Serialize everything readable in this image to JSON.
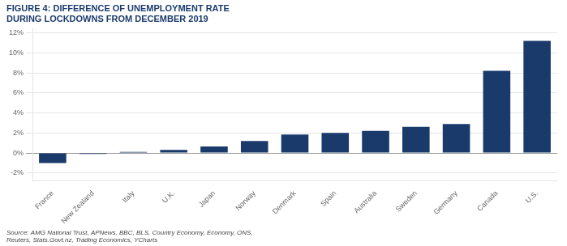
{
  "chart_data": {
    "type": "bar",
    "title": "FIGURE 4: DIFFERENCE OF UNEMPLOYMENT RATE\nDURING LOCKDOWNS FROM DECEMBER 2019",
    "annotations": [
      "Source: AMG National Trust, APNews, BBC, BLS, Country Economy, Economy, ONS,\nReuters, Stats.Govt.nz, Trading Economics, YCharts"
    ],
    "categories": [
      "France",
      "New Zealand",
      "Italy",
      "U.K.",
      "Japan",
      "Norway",
      "Denmark",
      "Spain",
      "Australia",
      "Sweden",
      "Germany",
      "Canada",
      "U.S."
    ],
    "values": [
      -1.0,
      -0.1,
      0.1,
      0.3,
      0.65,
      1.2,
      1.85,
      2.0,
      2.2,
      2.6,
      2.9,
      8.2,
      11.2
    ],
    "color": "#1a3a6b",
    "ylim": [
      -2.8,
      12.5
    ],
    "yticks": [
      {
        "value": -2,
        "label": "-2%"
      },
      {
        "value": 0,
        "label": "0%"
      },
      {
        "value": 2,
        "label": "2%"
      },
      {
        "value": 4,
        "label": "4%"
      },
      {
        "value": 6,
        "label": "6%"
      },
      {
        "value": 8,
        "label": "8%"
      },
      {
        "value": 10,
        "label": "10%"
      },
      {
        "value": 12,
        "label": "12%"
      }
    ],
    "grid": true
  }
}
